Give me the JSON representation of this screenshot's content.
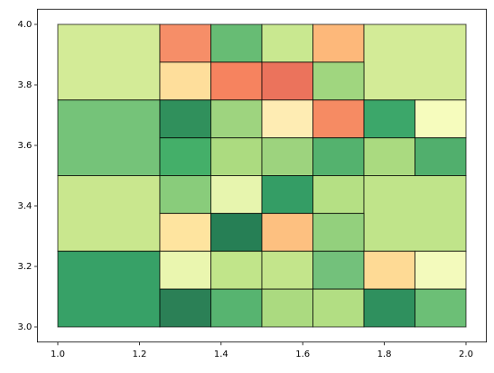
{
  "chart_data": {
    "type": "mosaic",
    "xlim": [
      0.95,
      2.05
    ],
    "ylim": [
      2.95,
      4.05
    ],
    "xticks": [
      {
        "value": 1.0,
        "label": "1.0"
      },
      {
        "value": 1.2,
        "label": "1.2"
      },
      {
        "value": 1.4,
        "label": "1.4"
      },
      {
        "value": 1.6,
        "label": "1.6"
      },
      {
        "value": 1.8,
        "label": "1.8"
      },
      {
        "value": 2.0,
        "label": "2.0"
      }
    ],
    "yticks": [
      {
        "value": 3.0,
        "label": "3.0"
      },
      {
        "value": 3.2,
        "label": "3.2"
      },
      {
        "value": 3.4,
        "label": "3.4"
      },
      {
        "value": 3.6,
        "label": "3.6"
      },
      {
        "value": 3.8,
        "label": "3.8"
      },
      {
        "value": 4.0,
        "label": "4.0"
      }
    ],
    "rects": [
      {
        "x": [
          1.0,
          1.25
        ],
        "y": [
          3.75,
          4.0
        ],
        "color": "#cbe885"
      },
      {
        "x": [
          1.25,
          1.375
        ],
        "y": [
          3.875,
          4.0
        ],
        "color": "#f57a4e"
      },
      {
        "x": [
          1.375,
          1.5
        ],
        "y": [
          3.875,
          4.0
        ],
        "color": "#4cb05c"
      },
      {
        "x": [
          1.5,
          1.625
        ],
        "y": [
          3.875,
          4.0
        ],
        "color": "#c0e47c"
      },
      {
        "x": [
          1.625,
          1.75
        ],
        "y": [
          3.875,
          4.0
        ],
        "color": "#fdab63"
      },
      {
        "x": [
          1.75,
          2.0
        ],
        "y": [
          3.75,
          4.0
        ],
        "color": "#cbe885"
      },
      {
        "x": [
          1.25,
          1.375
        ],
        "y": [
          3.75,
          3.875
        ],
        "color": "#fed88a"
      },
      {
        "x": [
          1.375,
          1.5
        ],
        "y": [
          3.75,
          3.875
        ],
        "color": "#f46d43"
      },
      {
        "x": [
          1.5,
          1.625
        ],
        "y": [
          3.75,
          3.875
        ],
        "color": "#e85a3f"
      },
      {
        "x": [
          1.625,
          1.75
        ],
        "y": [
          3.75,
          3.875
        ],
        "color": "#8fcf69"
      },
      {
        "x": [
          1.0,
          1.25
        ],
        "y": [
          3.5,
          3.75
        ],
        "color": "#5db962"
      },
      {
        "x": [
          1.25,
          1.375
        ],
        "y": [
          3.625,
          3.75
        ],
        "color": "#0c7d3f"
      },
      {
        "x": [
          1.375,
          1.5
        ],
        "y": [
          3.625,
          3.75
        ],
        "color": "#8dcd68"
      },
      {
        "x": [
          1.5,
          1.625
        ],
        "y": [
          3.625,
          3.75
        ],
        "color": "#fee9a6"
      },
      {
        "x": [
          1.625,
          1.75
        ],
        "y": [
          3.625,
          3.75
        ],
        "color": "#f57748"
      },
      {
        "x": [
          1.75,
          1.875
        ],
        "y": [
          3.625,
          3.75
        ],
        "color": "#1a9850"
      },
      {
        "x": [
          1.875,
          2.0
        ],
        "y": [
          3.625,
          3.75
        ],
        "color": "#f4fbb2"
      },
      {
        "x": [
          1.25,
          1.375
        ],
        "y": [
          3.5,
          3.625
        ],
        "color": "#23a14f"
      },
      {
        "x": [
          1.375,
          1.5
        ],
        "y": [
          3.5,
          3.625
        ],
        "color": "#9dd56a"
      },
      {
        "x": [
          1.5,
          1.625
        ],
        "y": [
          3.5,
          3.625
        ],
        "color": "#8ccb67"
      },
      {
        "x": [
          1.625,
          1.75
        ],
        "y": [
          3.5,
          3.625
        ],
        "color": "#36a455"
      },
      {
        "x": [
          1.75,
          1.875
        ],
        "y": [
          3.5,
          3.625
        ],
        "color": "#9bd46a"
      },
      {
        "x": [
          1.875,
          2.0
        ],
        "y": [
          3.5,
          3.625
        ],
        "color": "#33a153"
      },
      {
        "x": [
          1.0,
          1.25
        ],
        "y": [
          3.25,
          3.5
        ],
        "color": "#bfe37a"
      },
      {
        "x": [
          1.25,
          1.375
        ],
        "y": [
          3.375,
          3.5
        ],
        "color": "#74c364"
      },
      {
        "x": [
          1.375,
          1.5
        ],
        "y": [
          3.375,
          3.5
        ],
        "color": "#e3f3a0"
      },
      {
        "x": [
          1.5,
          1.625
        ],
        "y": [
          3.375,
          3.5
        ],
        "color": "#118c4a"
      },
      {
        "x": [
          1.625,
          1.75
        ],
        "y": [
          3.375,
          3.5
        ],
        "color": "#a8da6e"
      },
      {
        "x": [
          1.75,
          2.0
        ],
        "y": [
          3.25,
          3.5
        ],
        "color": "#b5df75"
      },
      {
        "x": [
          1.25,
          1.375
        ],
        "y": [
          3.25,
          3.375
        ],
        "color": "#fedf8e"
      },
      {
        "x": [
          1.375,
          1.5
        ],
        "y": [
          3.25,
          3.375
        ],
        "color": "#006837"
      },
      {
        "x": [
          1.5,
          1.625
        ],
        "y": [
          3.25,
          3.375
        ],
        "color": "#fdb56a"
      },
      {
        "x": [
          1.625,
          1.75
        ],
        "y": [
          3.25,
          3.375
        ],
        "color": "#80c866"
      },
      {
        "x": [
          1.0,
          1.25
        ],
        "y": [
          3.0,
          3.25
        ],
        "color": "#14904c"
      },
      {
        "x": [
          1.25,
          1.375
        ],
        "y": [
          3.125,
          3.25
        ],
        "color": "#e6f5a1"
      },
      {
        "x": [
          1.375,
          1.5
        ],
        "y": [
          3.125,
          3.25
        ],
        "color": "#b6e076"
      },
      {
        "x": [
          1.5,
          1.625
        ],
        "y": [
          3.125,
          3.25
        ],
        "color": "#b8e177"
      },
      {
        "x": [
          1.625,
          1.75
        ],
        "y": [
          3.125,
          3.25
        ],
        "color": "#5ab664"
      },
      {
        "x": [
          1.75,
          1.875
        ],
        "y": [
          3.125,
          3.25
        ],
        "color": "#fed383"
      },
      {
        "x": [
          1.875,
          2.0
        ],
        "y": [
          3.125,
          3.25
        ],
        "color": "#f1f9b0"
      },
      {
        "x": [
          1.25,
          1.375
        ],
        "y": [
          3.0,
          3.125
        ],
        "color": "#066a38"
      },
      {
        "x": [
          1.375,
          1.5
        ],
        "y": [
          3.0,
          3.125
        ],
        "color": "#3aa757"
      },
      {
        "x": [
          1.5,
          1.625
        ],
        "y": [
          3.0,
          3.125
        ],
        "color": "#9cd46a"
      },
      {
        "x": [
          1.625,
          1.75
        ],
        "y": [
          3.0,
          3.125
        ],
        "color": "#a5d86d"
      },
      {
        "x": [
          1.75,
          1.875
        ],
        "y": [
          3.0,
          3.125
        ],
        "color": "#0b7d42"
      },
      {
        "x": [
          1.875,
          2.0
        ],
        "y": [
          3.0,
          3.125
        ],
        "color": "#52b45e"
      }
    ]
  }
}
